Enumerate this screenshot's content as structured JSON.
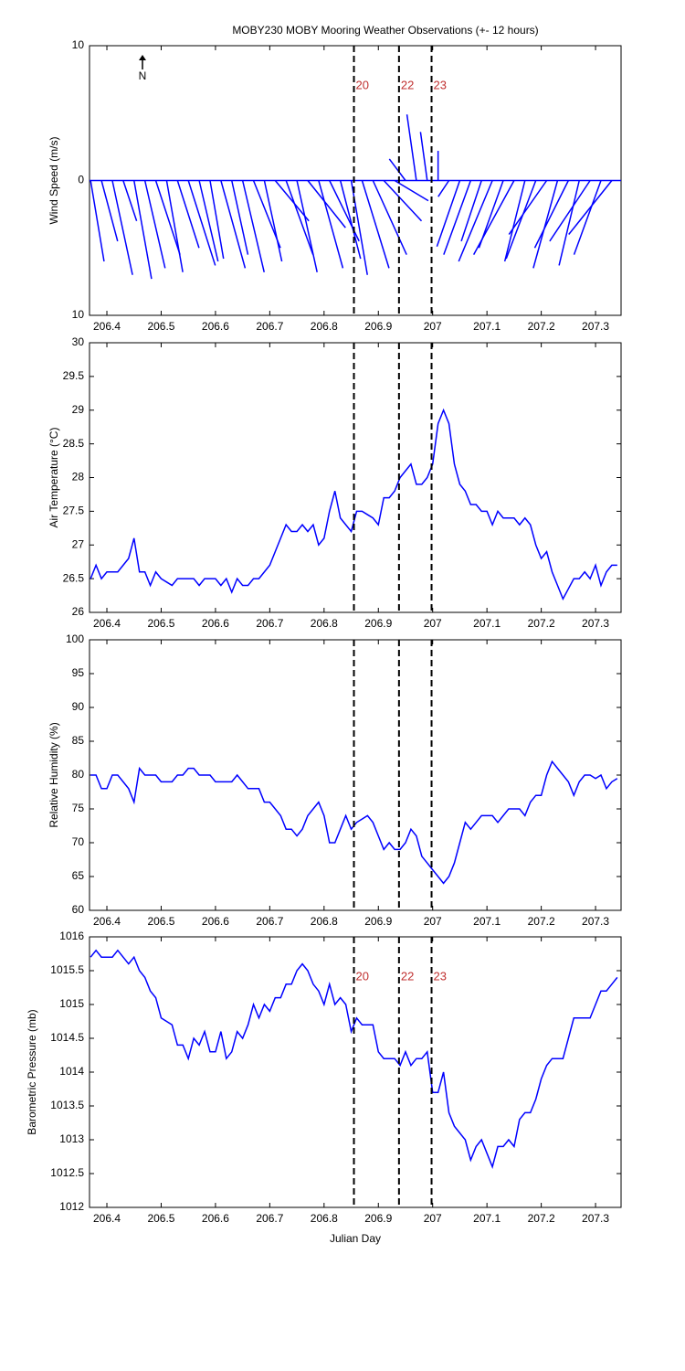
{
  "chart_data": [
    {
      "type": "stick",
      "title": "MOBY230 MOBY Mooring Weather Observations (+- 12 hours)",
      "north_label": "N",
      "ylabel": "Wind Speed (m/s)",
      "color": "#0000ff",
      "x": [
        206.37,
        206.39,
        206.41,
        206.43,
        206.45,
        206.47,
        206.49,
        206.51,
        206.53,
        206.55,
        206.57,
        206.59,
        206.61,
        206.63,
        206.65,
        206.67,
        206.69,
        206.71,
        206.73,
        206.75,
        206.77,
        206.79,
        206.81,
        206.83,
        206.85,
        206.87,
        206.89,
        206.91,
        206.93,
        206.95,
        206.97,
        206.99,
        207.01,
        207.03,
        207.05,
        207.07,
        207.09,
        207.11,
        207.13,
        207.15,
        207.17,
        207.19,
        207.21,
        207.23,
        207.25,
        207.27,
        207.29,
        207.31,
        207.33
      ],
      "u": [
        1.0,
        1.2,
        1.5,
        1.0,
        1.3,
        1.5,
        1.8,
        1.2,
        1.6,
        2.0,
        1.4,
        1.0,
        1.8,
        1.2,
        1.6,
        2.0,
        1.3,
        2.5,
        2.0,
        1.5,
        2.8,
        1.8,
        2.2,
        1.5,
        1.2,
        2.0,
        2.5,
        2.8,
        2.5,
        -1.2,
        -0.7,
        -0.5,
        0.0,
        -0.8,
        -1.7,
        -2.0,
        -1.5,
        -2.5,
        -1.8,
        -3.0,
        -1.5,
        -2.2,
        -2.8,
        -1.8,
        -2.5,
        -1.5,
        -3.0,
        -2.0,
        -3.2
      ],
      "v": [
        -6.0,
        -4.5,
        -7.0,
        -3.0,
        -7.3,
        -6.5,
        -5.5,
        -6.8,
        -5.0,
        -6.3,
        -6.0,
        -5.8,
        -6.5,
        -5.5,
        -6.8,
        -5.0,
        -6.0,
        -3.0,
        -5.5,
        -6.8,
        -3.5,
        -6.5,
        -4.5,
        -5.8,
        -7.0,
        -6.5,
        -5.5,
        -3.0,
        -1.5,
        1.6,
        4.9,
        3.6,
        2.2,
        -1.2,
        -4.9,
        -5.5,
        -4.5,
        -6.0,
        -5.0,
        -5.5,
        -6.0,
        -5.8,
        -4.0,
        -6.5,
        -5.0,
        -6.3,
        -4.5,
        -5.5,
        -4.0
      ],
      "xlim": [
        206.368,
        207.347
      ],
      "xticks": [
        206.4,
        206.5,
        206.6,
        206.7,
        206.8,
        206.9,
        207,
        207.1,
        207.2,
        207.3
      ],
      "ylim": [
        -10,
        10
      ],
      "yticks": [
        {
          "value": -10,
          "label": "10"
        },
        0,
        10
      ],
      "vlines": [
        206.855,
        206.938,
        206.998
      ],
      "vline_labels": [
        "20",
        "22",
        "23"
      ]
    },
    {
      "type": "line",
      "ylabel": "Air Temperature (°C)",
      "color": "#0000ff",
      "x": [
        206.37,
        206.38,
        206.39,
        206.4,
        206.41,
        206.42,
        206.43,
        206.44,
        206.45,
        206.46,
        206.47,
        206.48,
        206.49,
        206.5,
        206.51,
        206.52,
        206.53,
        206.54,
        206.55,
        206.56,
        206.57,
        206.58,
        206.59,
        206.6,
        206.61,
        206.62,
        206.63,
        206.64,
        206.65,
        206.66,
        206.67,
        206.68,
        206.69,
        206.7,
        206.71,
        206.72,
        206.73,
        206.74,
        206.75,
        206.76,
        206.77,
        206.78,
        206.79,
        206.8,
        206.81,
        206.82,
        206.83,
        206.84,
        206.85,
        206.86,
        206.87,
        206.88,
        206.89,
        206.9,
        206.91,
        206.92,
        206.93,
        206.94,
        206.95,
        206.96,
        206.97,
        206.98,
        206.99,
        207.0,
        207.01,
        207.02,
        207.03,
        207.04,
        207.05,
        207.06,
        207.07,
        207.08,
        207.09,
        207.1,
        207.11,
        207.12,
        207.13,
        207.14,
        207.15,
        207.16,
        207.17,
        207.18,
        207.19,
        207.2,
        207.21,
        207.22,
        207.23,
        207.24,
        207.25,
        207.26,
        207.27,
        207.28,
        207.29,
        207.3,
        207.31,
        207.32,
        207.33,
        207.34
      ],
      "values": [
        26.5,
        26.7,
        26.5,
        26.6,
        26.6,
        26.6,
        26.7,
        26.8,
        27.1,
        26.6,
        26.6,
        26.4,
        26.6,
        26.5,
        26.45,
        26.4,
        26.5,
        26.5,
        26.5,
        26.5,
        26.4,
        26.5,
        26.5,
        26.5,
        26.4,
        26.5,
        26.3,
        26.5,
        26.4,
        26.4,
        26.5,
        26.5,
        26.6,
        26.7,
        26.9,
        27.1,
        27.3,
        27.2,
        27.2,
        27.3,
        27.2,
        27.3,
        27.0,
        27.1,
        27.5,
        27.8,
        27.4,
        27.3,
        27.2,
        27.5,
        27.5,
        27.45,
        27.4,
        27.3,
        27.7,
        27.7,
        27.8,
        28.0,
        28.1,
        28.2,
        27.9,
        27.9,
        28.0,
        28.2,
        28.8,
        29.0,
        28.8,
        28.2,
        27.9,
        27.8,
        27.6,
        27.6,
        27.5,
        27.5,
        27.3,
        27.5,
        27.4,
        27.4,
        27.4,
        27.3,
        27.4,
        27.3,
        27.0,
        26.8,
        26.9,
        26.6,
        26.4,
        26.2,
        26.35,
        26.5,
        26.5,
        26.6,
        26.5,
        26.7,
        26.4,
        26.6,
        26.7,
        26.7
      ],
      "xlim": [
        206.368,
        207.347
      ],
      "xticks": [
        206.4,
        206.5,
        206.6,
        206.7,
        206.8,
        206.9,
        207,
        207.1,
        207.2,
        207.3
      ],
      "ylim": [
        26,
        30
      ],
      "yticks": [
        26,
        26.5,
        27,
        27.5,
        28,
        28.5,
        29,
        29.5,
        30
      ],
      "vlines": [
        206.855,
        206.938,
        206.998
      ]
    },
    {
      "type": "line",
      "ylabel": "Relative Humidity (%)",
      "color": "#0000ff",
      "x": [
        206.37,
        206.38,
        206.39,
        206.4,
        206.41,
        206.42,
        206.43,
        206.44,
        206.45,
        206.46,
        206.47,
        206.48,
        206.49,
        206.5,
        206.51,
        206.52,
        206.53,
        206.54,
        206.55,
        206.56,
        206.57,
        206.58,
        206.59,
        206.6,
        206.61,
        206.62,
        206.63,
        206.64,
        206.65,
        206.66,
        206.67,
        206.68,
        206.69,
        206.7,
        206.71,
        206.72,
        206.73,
        206.74,
        206.75,
        206.76,
        206.77,
        206.78,
        206.79,
        206.8,
        206.81,
        206.82,
        206.83,
        206.84,
        206.85,
        206.86,
        206.87,
        206.88,
        206.89,
        206.9,
        206.91,
        206.92,
        206.93,
        206.94,
        206.95,
        206.96,
        206.97,
        206.98,
        206.99,
        207.0,
        207.01,
        207.02,
        207.03,
        207.04,
        207.05,
        207.06,
        207.07,
        207.08,
        207.09,
        207.1,
        207.11,
        207.12,
        207.13,
        207.14,
        207.15,
        207.16,
        207.17,
        207.18,
        207.19,
        207.2,
        207.21,
        207.22,
        207.23,
        207.24,
        207.25,
        207.26,
        207.27,
        207.28,
        207.29,
        207.3,
        207.31,
        207.32,
        207.33,
        207.34
      ],
      "values": [
        80,
        80,
        78,
        78,
        80,
        80,
        79,
        78,
        76,
        81,
        80,
        80,
        80,
        79,
        79,
        79,
        80,
        80,
        81,
        81,
        80,
        80,
        80,
        79,
        79,
        79,
        79,
        80,
        79,
        78,
        78,
        78,
        76,
        76,
        75,
        74,
        72,
        72,
        71,
        72,
        74,
        75,
        76,
        74,
        70,
        70,
        72,
        74,
        72,
        73,
        73.5,
        74,
        73,
        71,
        69,
        70,
        69,
        69,
        70,
        72,
        71,
        68,
        67,
        66,
        65,
        64,
        65,
        67,
        70,
        73,
        72,
        73,
        74,
        74,
        74,
        73,
        74,
        75,
        75,
        75,
        74,
        76,
        77,
        77,
        80,
        82,
        81,
        80,
        79,
        77,
        79,
        80,
        80,
        79.5,
        80,
        78,
        79,
        79.5
      ],
      "xlim": [
        206.368,
        207.347
      ],
      "xticks": [
        206.4,
        206.5,
        206.6,
        206.7,
        206.8,
        206.9,
        207,
        207.1,
        207.2,
        207.3
      ],
      "ylim": [
        60,
        100
      ],
      "yticks": [
        60,
        65,
        70,
        75,
        80,
        85,
        90,
        95,
        100
      ],
      "vlines": [
        206.855,
        206.938,
        206.998
      ]
    },
    {
      "type": "line",
      "ylabel": "Barometric Pressure (mb)",
      "xlabel": "Julian Day",
      "color": "#0000ff",
      "x": [
        206.37,
        206.38,
        206.39,
        206.4,
        206.41,
        206.42,
        206.43,
        206.44,
        206.45,
        206.46,
        206.47,
        206.48,
        206.49,
        206.5,
        206.51,
        206.52,
        206.53,
        206.54,
        206.55,
        206.56,
        206.57,
        206.58,
        206.59,
        206.6,
        206.61,
        206.62,
        206.63,
        206.64,
        206.65,
        206.66,
        206.67,
        206.68,
        206.69,
        206.7,
        206.71,
        206.72,
        206.73,
        206.74,
        206.75,
        206.76,
        206.77,
        206.78,
        206.79,
        206.8,
        206.81,
        206.82,
        206.83,
        206.84,
        206.85,
        206.86,
        206.87,
        206.88,
        206.89,
        206.9,
        206.91,
        206.92,
        206.93,
        206.94,
        206.95,
        206.96,
        206.97,
        206.98,
        206.99,
        207.0,
        207.01,
        207.02,
        207.03,
        207.04,
        207.05,
        207.06,
        207.07,
        207.08,
        207.09,
        207.1,
        207.11,
        207.12,
        207.13,
        207.14,
        207.15,
        207.16,
        207.17,
        207.18,
        207.19,
        207.2,
        207.21,
        207.22,
        207.23,
        207.24,
        207.25,
        207.26,
        207.27,
        207.28,
        207.29,
        207.3,
        207.31,
        207.32,
        207.33,
        207.34
      ],
      "values": [
        1015.7,
        1015.8,
        1015.7,
        1015.7,
        1015.7,
        1015.8,
        1015.7,
        1015.6,
        1015.7,
        1015.5,
        1015.4,
        1015.2,
        1015.1,
        1014.8,
        1014.75,
        1014.7,
        1014.4,
        1014.4,
        1014.2,
        1014.5,
        1014.4,
        1014.6,
        1014.3,
        1014.3,
        1014.6,
        1014.2,
        1014.3,
        1014.6,
        1014.5,
        1014.7,
        1015.0,
        1014.8,
        1015.0,
        1014.9,
        1015.1,
        1015.1,
        1015.3,
        1015.3,
        1015.5,
        1015.6,
        1015.5,
        1015.3,
        1015.2,
        1015.0,
        1015.3,
        1015.0,
        1015.1,
        1015.0,
        1014.6,
        1014.8,
        1014.7,
        1014.7,
        1014.7,
        1014.3,
        1014.2,
        1014.2,
        1014.2,
        1014.1,
        1014.3,
        1014.1,
        1014.2,
        1014.2,
        1014.3,
        1013.7,
        1013.7,
        1014.0,
        1013.4,
        1013.2,
        1013.1,
        1013.0,
        1012.7,
        1012.9,
        1013.0,
        1012.8,
        1012.6,
        1012.9,
        1012.9,
        1013.0,
        1012.9,
        1013.3,
        1013.4,
        1013.4,
        1013.6,
        1013.9,
        1014.1,
        1014.2,
        1014.2,
        1014.2,
        1014.5,
        1014.8,
        1014.8,
        1014.8,
        1014.8,
        1015.0,
        1015.2,
        1015.2,
        1015.3,
        1015.4
      ],
      "xlim": [
        206.368,
        207.347
      ],
      "xticks": [
        206.4,
        206.5,
        206.6,
        206.7,
        206.8,
        206.9,
        207,
        207.1,
        207.2,
        207.3
      ],
      "ylim": [
        1012,
        1016
      ],
      "yticks": [
        1012,
        1012.5,
        1013,
        1013.5,
        1014,
        1014.5,
        1015,
        1015.5,
        1016
      ],
      "vlines": [
        206.855,
        206.938,
        206.998
      ],
      "vline_labels": [
        "20",
        "22",
        "23"
      ]
    }
  ]
}
